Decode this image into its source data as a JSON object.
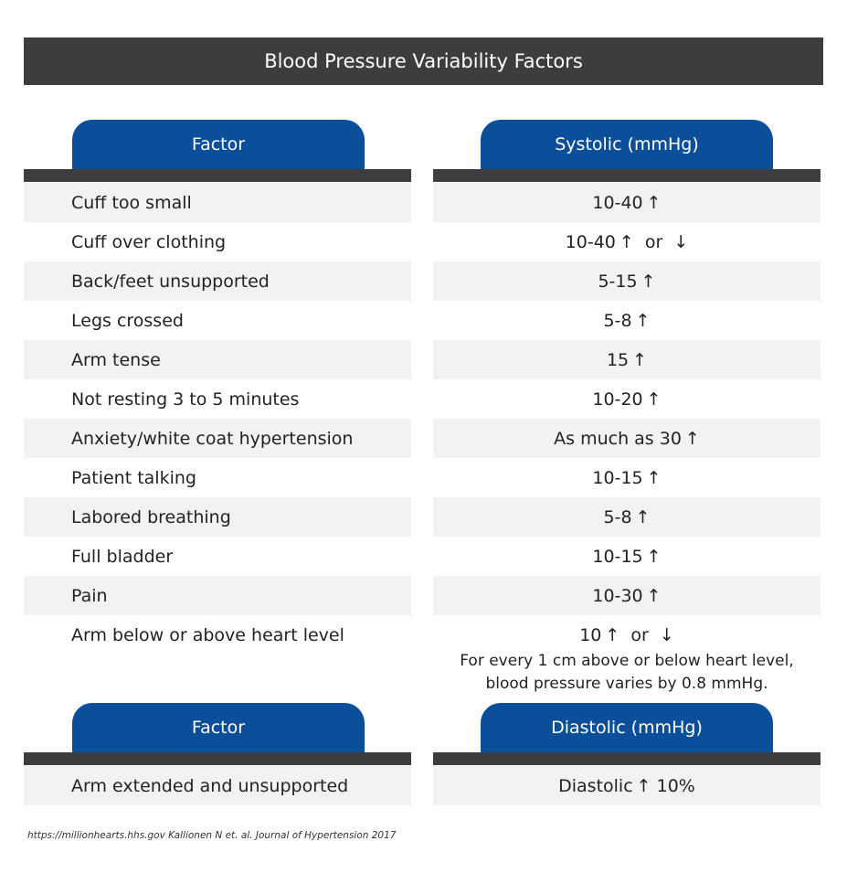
{
  "title": "Blood Pressure Variability Factors",
  "systolic_table": {
    "headers": {
      "factor": "Factor",
      "value": "Systolic (mmHg)"
    },
    "rows": [
      {
        "factor": "Cuff too small",
        "value": "10-40",
        "suffix": "↑"
      },
      {
        "factor": "Cuff over clothing",
        "value": "10-40",
        "suffix": "↑  or  ↓"
      },
      {
        "factor": "Back/feet unsupported",
        "value": "5-15",
        "suffix": "↑"
      },
      {
        "factor": "Legs crossed",
        "value": "5-8",
        "suffix": "↑"
      },
      {
        "factor": "Arm tense",
        "value": "15",
        "suffix": "↑"
      },
      {
        "factor": "Not resting 3 to 5 minutes",
        "value": "10-20",
        "suffix": "↑"
      },
      {
        "factor": "Anxiety/white coat hypertension",
        "value": "As much as 30",
        "suffix": "↑"
      },
      {
        "factor": "Patient talking",
        "value": "10-15",
        "suffix": "↑"
      },
      {
        "factor": "Labored breathing",
        "value": "5-8",
        "suffix": "↑"
      },
      {
        "factor": "Full bladder",
        "value": "10-15",
        "suffix": "↑"
      },
      {
        "factor": "Pain",
        "value": "10-30",
        "suffix": "↑"
      },
      {
        "factor": "Arm below or above heart level",
        "value": "10",
        "suffix": "↑  or  ↓"
      }
    ],
    "note_line1": "For every 1 cm above or below heart level,",
    "note_line2": "blood pressure varies by 0.8 mmHg."
  },
  "diastolic_table": {
    "headers": {
      "factor": "Factor",
      "value": "Diastolic (mmHg)"
    },
    "rows": [
      {
        "factor": "Arm extended and unsupported",
        "value": "Diastolic",
        "suffix": "↑ 10%"
      }
    ]
  },
  "footer": "https://millionhearts.hhs.gov Kallionen N et. al. Journal of Hypertension 2017"
}
